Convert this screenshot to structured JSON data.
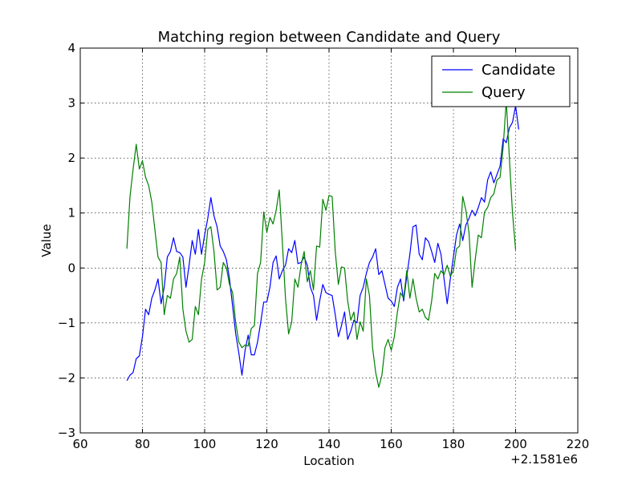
{
  "chart_data": {
    "type": "line",
    "title": "Matching region between Candidate and Query",
    "xlabel": "Location",
    "ylabel": "Value",
    "x_offset_label": "+2.1581e6",
    "xlim": [
      60,
      220
    ],
    "ylim": [
      -3,
      4
    ],
    "x_ticks": [
      60,
      80,
      100,
      120,
      140,
      160,
      180,
      200,
      220
    ],
    "x_tick_labels": [
      "60",
      "80",
      "100",
      "120",
      "140",
      "160",
      "180",
      "200",
      "220"
    ],
    "y_ticks": [
      -3,
      -2,
      -1,
      0,
      1,
      2,
      3,
      4
    ],
    "y_tick_labels": [
      "−3",
      "−2",
      "−1",
      "0",
      "1",
      "2",
      "3",
      "4"
    ],
    "grid": true,
    "legend_position": "top-right",
    "colors": {
      "candidate": "#0000ff",
      "query": "#008000"
    },
    "series": [
      {
        "name": "Candidate",
        "x_start": 75,
        "values": [
          -2.05,
          -1.95,
          -1.9,
          -1.65,
          -1.6,
          -1.25,
          -0.75,
          -0.85,
          -0.55,
          -0.4,
          -0.2,
          -0.65,
          -0.35,
          0.2,
          0.3,
          0.55,
          0.3,
          0.28,
          0.2,
          -0.35,
          0.05,
          0.5,
          0.25,
          0.7,
          0.25,
          0.6,
          0.9,
          1.28,
          0.95,
          0.75,
          0.4,
          0.3,
          0.15,
          -0.2,
          -0.7,
          -1.2,
          -1.55,
          -1.95,
          -1.5,
          -1.22,
          -1.58,
          -1.58,
          -1.35,
          -1.0,
          -0.62,
          -0.62,
          -0.35,
          0.1,
          0.22,
          -0.2,
          -0.05,
          0.05,
          0.35,
          0.28,
          0.5,
          0.08,
          0.1,
          0.2,
          0.05,
          -0.35,
          -0.5,
          -0.95,
          -0.6,
          -0.3,
          -0.45,
          -0.48,
          -0.5,
          -0.85,
          -1.25,
          -1.05,
          -0.8,
          -1.3,
          -1.15,
          -0.95,
          -1.0,
          -0.5,
          -0.35,
          -0.1,
          0.1,
          0.2,
          0.35,
          -0.12,
          -0.05,
          -0.3,
          -0.55,
          -0.6,
          -0.7,
          -0.35,
          -0.2,
          -0.6,
          -0.15,
          0.25,
          0.75,
          0.78,
          0.25,
          0.15,
          0.55,
          0.48,
          0.3,
          0.1,
          0.45,
          0.25,
          -0.2,
          -0.65,
          -0.2,
          0.2,
          0.6,
          0.8,
          0.5,
          0.78,
          0.9,
          1.05,
          0.95,
          1.1,
          1.28,
          1.2,
          1.6,
          1.75,
          1.55,
          1.7,
          1.85,
          2.35,
          2.28,
          2.55,
          2.65,
          2.95,
          2.52
        ]
      },
      {
        "name": "Query",
        "x_start": 75,
        "values": [
          0.35,
          1.3,
          1.8,
          2.25,
          1.8,
          1.95,
          1.65,
          1.5,
          1.2,
          0.7,
          0.2,
          0.1,
          -0.85,
          -0.5,
          -0.55,
          -0.2,
          -0.1,
          0.2,
          -0.75,
          -1.15,
          -1.35,
          -1.3,
          -0.7,
          -0.85,
          -0.2,
          0.1,
          0.7,
          0.75,
          0.3,
          -0.4,
          -0.35,
          0.1,
          0.0,
          -0.3,
          -0.45,
          -1.0,
          -1.35,
          -1.45,
          -1.4,
          -1.42,
          -1.1,
          -1.05,
          -0.1,
          0.1,
          1.02,
          0.65,
          0.92,
          0.8,
          1.05,
          1.42,
          0.45,
          -0.55,
          -1.2,
          -0.98,
          -0.2,
          -0.35,
          0.05,
          0.3,
          -0.25,
          -0.05,
          -0.4,
          0.4,
          0.38,
          1.25,
          1.05,
          1.32,
          1.3,
          0.3,
          -0.3,
          0.02,
          0.0,
          -0.6,
          -0.95,
          -0.8,
          -1.3,
          -0.98,
          -1.15,
          -0.2,
          -0.5,
          -1.45,
          -1.9,
          -2.17,
          -1.95,
          -1.45,
          -1.3,
          -1.5,
          -1.25,
          -0.8,
          -0.45,
          -0.55,
          -0.05,
          -0.55,
          -0.2,
          -0.55,
          -0.8,
          -0.75,
          -0.9,
          -0.95,
          -0.6,
          -0.1,
          -0.2,
          -0.05,
          -0.12,
          0.05,
          -0.15,
          -0.05,
          0.35,
          0.4,
          1.3,
          1.05,
          0.65,
          -0.35,
          0.15,
          0.6,
          0.55,
          1.02,
          1.1,
          1.28,
          1.35,
          1.6,
          1.65,
          2.2,
          3.05,
          2.0,
          1.0,
          0.33
        ]
      }
    ]
  }
}
